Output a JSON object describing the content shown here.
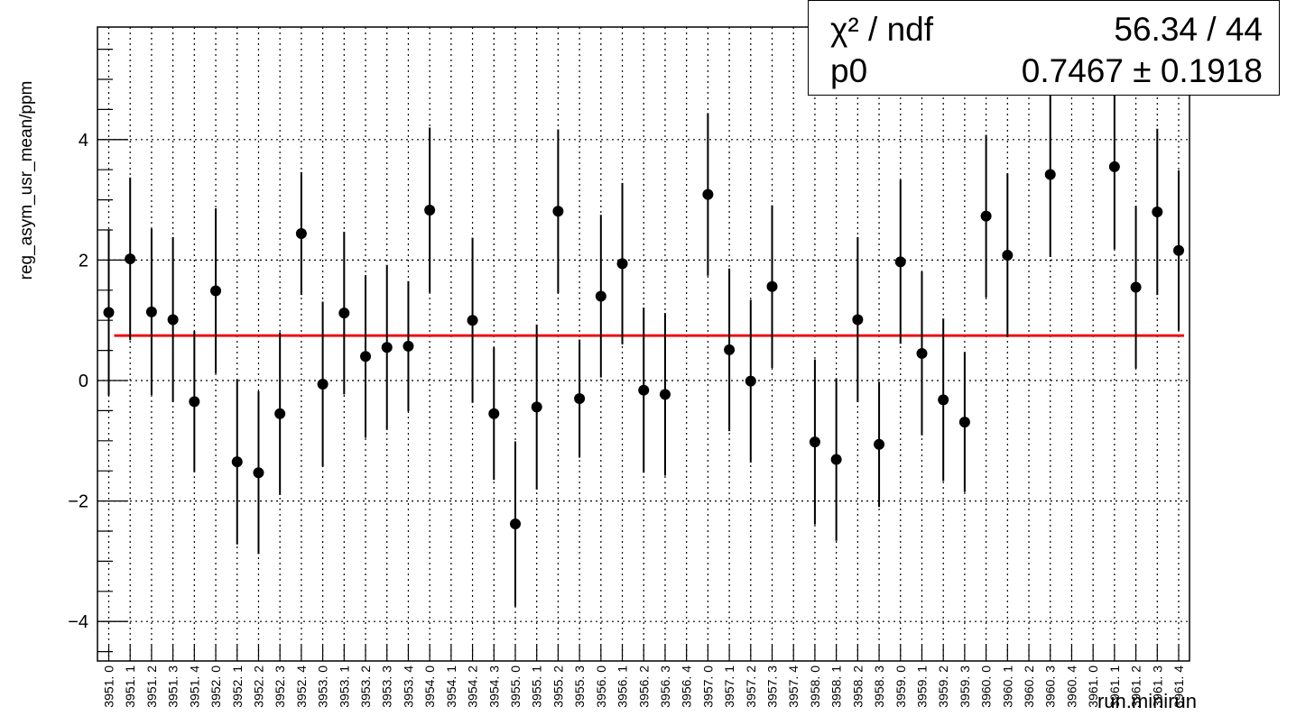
{
  "stats": {
    "chi2_label": "χ² / ndf",
    "chi2_value": "56.34 / 44",
    "p0_label": "p0",
    "p0_value": "0.7467 ± 0.1918"
  },
  "chart_data": {
    "type": "scatter",
    "xlabel": "run.minirun",
    "ylabel": "reg_asym_usr_mean/ppm",
    "ylim": [
      -4.5,
      5.8
    ],
    "yticks": [
      -4,
      -2,
      0,
      2,
      4
    ],
    "grid": true,
    "categories": [
      "3951.0",
      "3951.1",
      "3951.2",
      "3951.3",
      "3951.4",
      "3952.0",
      "3952.1",
      "3952.2",
      "3952.3",
      "3952.4",
      "3953.0",
      "3953.1",
      "3953.2",
      "3953.3",
      "3953.4",
      "3954.0",
      "3954.1",
      "3954.2",
      "3954.3",
      "3955.0",
      "3955.1",
      "3955.2",
      "3955.3",
      "3956.0",
      "3956.1",
      "3956.2",
      "3956.3",
      "3956.4",
      "3957.0",
      "3957.1",
      "3957.2",
      "3957.3",
      "3957.4",
      "3958.0",
      "3958.1",
      "3958.2",
      "3958.3",
      "3959.0",
      "3959.1",
      "3959.2",
      "3959.3",
      "3960.0",
      "3960.1",
      "3960.2",
      "3960.3",
      "3960.4",
      "3961.0",
      "3961.1",
      "3961.2",
      "3961.3",
      "3961.4"
    ],
    "tick_labels": [
      "3951. 0",
      "3951. 1",
      "3951. 2",
      "3951. 3",
      "3951. 4",
      "3952. 0",
      "3952. 1",
      "3952. 2",
      "3952. 3",
      "3952. 4",
      "3953. 0",
      "3953. 1",
      "3953. 2",
      "3953. 3",
      "3953. 4",
      "3954. 0",
      "3954. 1",
      "3954. 2",
      "3954. 3",
      "3955. 0",
      "3955. 1",
      "3955. 2",
      "3955. 3",
      "3956. 0",
      "3956. 1",
      "3956. 2",
      "3956. 3",
      "3956. 4",
      "3957. 0",
      "3957. 1",
      "3957. 2",
      "3957. 3",
      "3957. 4",
      "3958. 0",
      "3958. 1",
      "3958. 2",
      "3958. 3",
      "3959. 0",
      "3959. 1",
      "3959. 2",
      "3959. 3",
      "3960. 0",
      "3960. 1",
      "3960. 2",
      "3960. 3",
      "3960. 4",
      "3961. 0",
      "3961. 1",
      "3961. 2",
      "3961. 3",
      "3961. 4"
    ],
    "points": [
      {
        "i": 0,
        "y": 1.13,
        "err": 1.38
      },
      {
        "i": 1,
        "y": 2.02,
        "err": 1.35
      },
      {
        "i": 2,
        "y": 1.14,
        "err": 1.38
      },
      {
        "i": 3,
        "y": 1.01,
        "err": 1.37
      },
      {
        "i": 4,
        "y": -0.35,
        "err": 1.17
      },
      {
        "i": 5,
        "y": 1.49,
        "err": 1.37
      },
      {
        "i": 6,
        "y": -1.35,
        "err": 1.37
      },
      {
        "i": 7,
        "y": -1.53,
        "err": 1.35
      },
      {
        "i": 8,
        "y": -0.55,
        "err": 1.35
      },
      {
        "i": 9,
        "y": 2.44,
        "err": 1.02
      },
      {
        "i": 10,
        "y": -0.06,
        "err": 1.37
      },
      {
        "i": 11,
        "y": 1.12,
        "err": 1.35
      },
      {
        "i": 12,
        "y": 0.4,
        "err": 1.35
      },
      {
        "i": 13,
        "y": 0.55,
        "err": 1.37
      },
      {
        "i": 14,
        "y": 0.57,
        "err": 1.08
      },
      {
        "i": 15,
        "y": 2.83,
        "err": 1.37
      },
      {
        "i": 17,
        "y": 1.0,
        "err": 1.37
      },
      {
        "i": 18,
        "y": -0.55,
        "err": 1.1
      },
      {
        "i": 19,
        "y": -2.38,
        "err": 1.37
      },
      {
        "i": 20,
        "y": -0.44,
        "err": 1.37
      },
      {
        "i": 21,
        "y": 2.81,
        "err": 1.36
      },
      {
        "i": 22,
        "y": -0.3,
        "err": 0.98
      },
      {
        "i": 23,
        "y": 1.4,
        "err": 1.35
      },
      {
        "i": 24,
        "y": 1.94,
        "err": 1.34
      },
      {
        "i": 25,
        "y": -0.16,
        "err": 1.37
      },
      {
        "i": 26,
        "y": -0.23,
        "err": 1.35
      },
      {
        "i": 28,
        "y": 3.09,
        "err": 1.35
      },
      {
        "i": 29,
        "y": 0.51,
        "err": 1.35
      },
      {
        "i": 30,
        "y": -0.01,
        "err": 1.35
      },
      {
        "i": 31,
        "y": 1.56,
        "err": 1.35
      },
      {
        "i": 33,
        "y": -1.02,
        "err": 1.37
      },
      {
        "i": 34,
        "y": -1.31,
        "err": 1.35
      },
      {
        "i": 35,
        "y": 1.01,
        "err": 1.37
      },
      {
        "i": 36,
        "y": -1.06,
        "err": 1.04
      },
      {
        "i": 37,
        "y": 1.97,
        "err": 1.36
      },
      {
        "i": 38,
        "y": 0.45,
        "err": 1.36
      },
      {
        "i": 39,
        "y": -0.32,
        "err": 1.35
      },
      {
        "i": 40,
        "y": -0.69,
        "err": 1.16
      },
      {
        "i": 41,
        "y": 2.73,
        "err": 1.35
      },
      {
        "i": 42,
        "y": 2.08,
        "err": 1.36
      },
      {
        "i": 44,
        "y": 3.42,
        "err": 1.37
      },
      {
        "i": 47,
        "y": 3.55,
        "err": 1.37
      },
      {
        "i": 48,
        "y": 1.55,
        "err": 1.35
      },
      {
        "i": 49,
        "y": 2.8,
        "err": 1.38
      },
      {
        "i": 50,
        "y": 2.16,
        "err": 1.33
      }
    ],
    "fit": {
      "value": 0.7467,
      "color": "#ee1111"
    },
    "marker_color": "#000000"
  }
}
